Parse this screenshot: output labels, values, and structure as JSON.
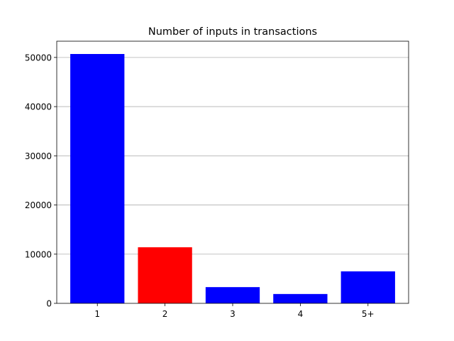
{
  "chart_data": {
    "type": "bar",
    "title": "Number of inputs in transactions",
    "xlabel": "",
    "ylabel": "",
    "categories": [
      "1",
      "2",
      "3",
      "4",
      "5+"
    ],
    "values": [
      50700,
      11400,
      3300,
      1900,
      6500
    ],
    "bar_colors": [
      "#0000ff",
      "#ff0000",
      "#0000ff",
      "#0000ff",
      "#0000ff"
    ],
    "ylim": [
      0,
      53300
    ],
    "yticks": [
      0,
      10000,
      20000,
      30000,
      40000,
      50000
    ],
    "grid": {
      "y": true,
      "x": false,
      "color": "#b0b0b0"
    },
    "legend": "none"
  }
}
